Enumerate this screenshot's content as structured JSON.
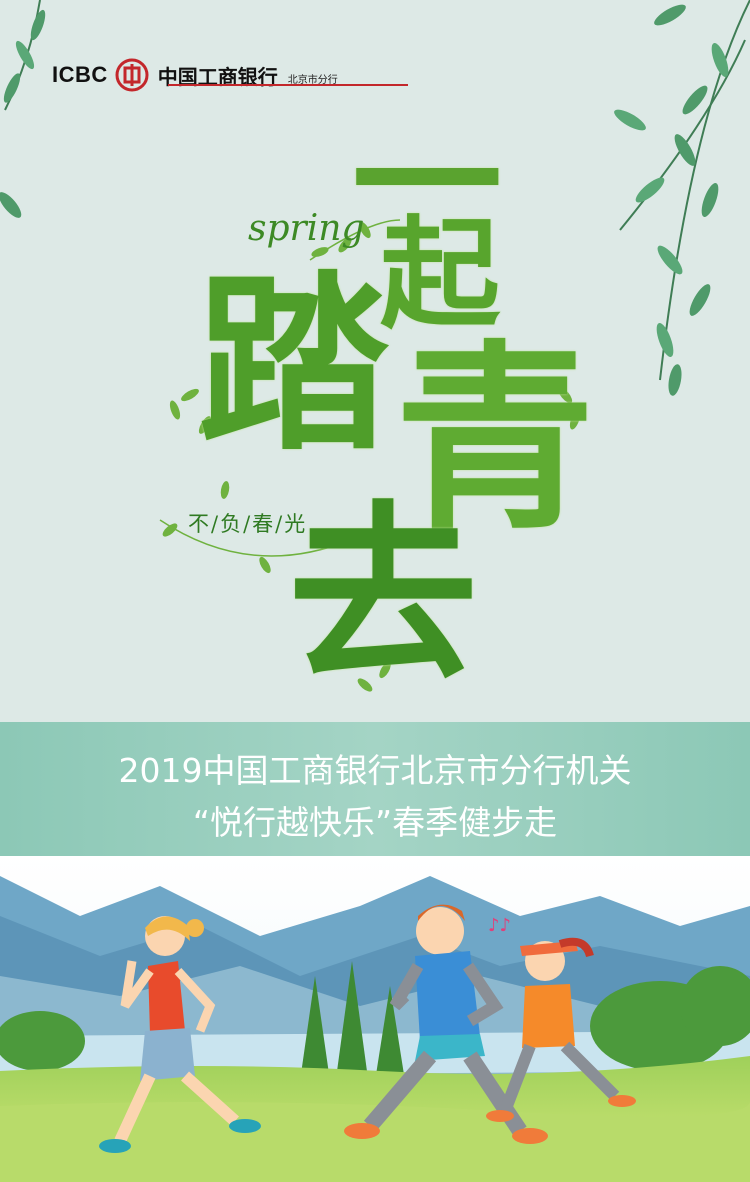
{
  "header": {
    "icbc_text": "ICBC",
    "bank_name": "中国工商银行",
    "branch": "北京市分行"
  },
  "poster": {
    "spring_word": "spring",
    "title_chars": [
      "一",
      "起",
      "踏",
      "青",
      "去"
    ],
    "motto": "不/负/春/光"
  },
  "banner": {
    "line1": "2019中国工商银行北京市分行机关",
    "line2": "“悦行越快乐”春季健步走"
  },
  "colors": {
    "bank_red": "#c3272b",
    "leaf_green": "#4e9b2b",
    "banner_teal": "#9ccfc0",
    "background": "#dde9e6"
  }
}
